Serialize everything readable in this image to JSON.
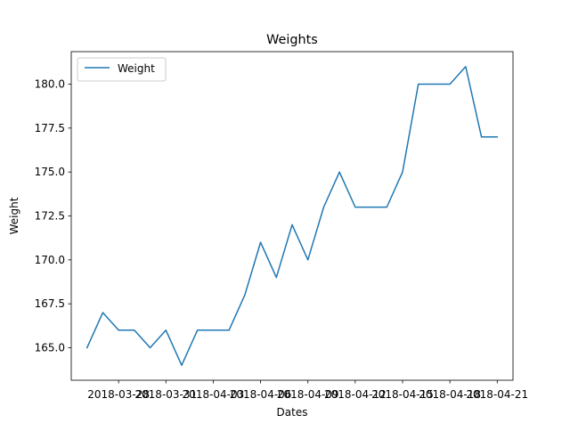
{
  "chart_data": {
    "type": "line",
    "title": "Weights",
    "xlabel": "Dates",
    "ylabel": "Weight",
    "x": [
      "2018-03-26",
      "2018-03-27",
      "2018-03-28",
      "2018-03-29",
      "2018-03-30",
      "2018-03-31",
      "2018-04-01",
      "2018-04-02",
      "2018-04-03",
      "2018-04-04",
      "2018-04-05",
      "2018-04-06",
      "2018-04-07",
      "2018-04-08",
      "2018-04-09",
      "2018-04-10",
      "2018-04-11",
      "2018-04-12",
      "2018-04-13",
      "2018-04-14",
      "2018-04-15",
      "2018-04-16",
      "2018-04-17",
      "2018-04-18",
      "2018-04-19",
      "2018-04-20",
      "2018-04-21"
    ],
    "series": [
      {
        "name": "Weight",
        "color": "#1f77b4",
        "values": [
          165,
          167,
          166,
          166,
          165,
          166,
          164,
          166,
          166,
          166,
          168,
          171,
          169,
          172,
          170,
          173,
          175,
          173,
          173,
          173,
          175,
          180,
          180,
          180,
          181,
          177,
          177
        ]
      }
    ],
    "xticks": [
      "2018-03-28",
      "2018-03-31",
      "2018-04-03",
      "2018-04-06",
      "2018-04-09",
      "2018-04-12",
      "2018-04-15",
      "2018-04-18",
      "2018-04-21"
    ],
    "yticks": [
      "165.0",
      "167.5",
      "170.0",
      "172.5",
      "175.0",
      "177.5",
      "180.0"
    ],
    "xlim": [
      "2018-03-25",
      "2018-04-22"
    ],
    "ylim": [
      163.15,
      181.85
    ],
    "legend": "upper-left",
    "grid": false
  }
}
